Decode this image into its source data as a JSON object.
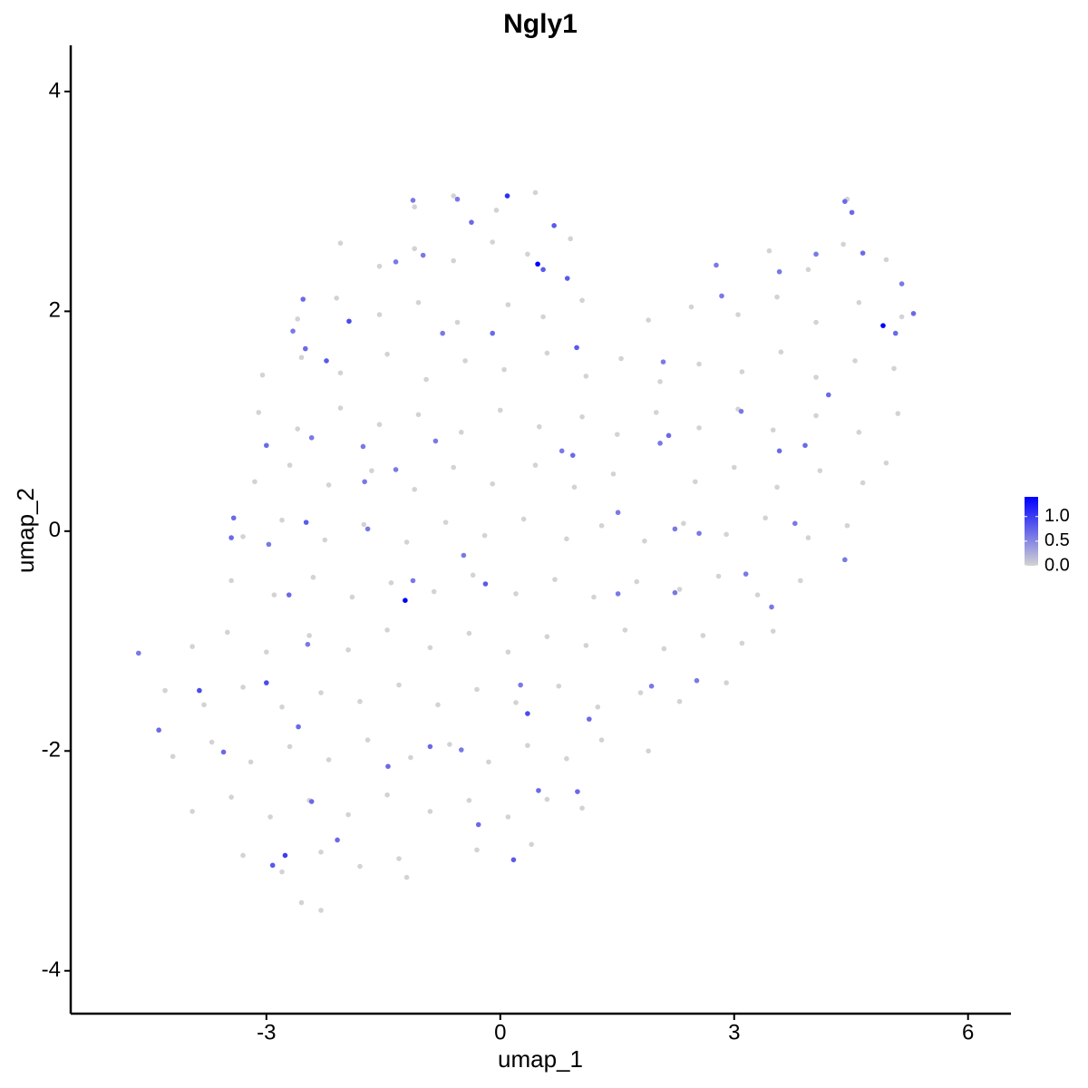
{
  "chart_data": {
    "type": "scatter",
    "title": "Ngly1",
    "x_label": "umap_1",
    "y_label": "umap_2",
    "xlim": [
      -5.51,
      6.55
    ],
    "ylim": [
      -4.39,
      4.42
    ],
    "xticks": [
      -3,
      0,
      3,
      6
    ],
    "yticks": [
      -4,
      -2,
      0,
      2,
      4
    ],
    "color_scale": {
      "low": "#d3d3d3",
      "high": "#0000ff",
      "ticks": [
        {
          "value": 0,
          "label": "0.0"
        },
        {
          "value": 0.5,
          "label": "0.5"
        },
        {
          "value": 1,
          "label": "1.0"
        }
      ]
    },
    "points": [
      [
        -1.1,
        2.95,
        0
      ],
      [
        -0.6,
        3.05,
        0
      ],
      [
        -0.05,
        2.92,
        0
      ],
      [
        0.45,
        3.08,
        0
      ],
      [
        4.45,
        3.02,
        0
      ],
      [
        -2.05,
        2.62,
        0
      ],
      [
        -1.55,
        2.41,
        0
      ],
      [
        -1.1,
        2.57,
        0
      ],
      [
        -0.6,
        2.46,
        0
      ],
      [
        -0.1,
        2.63,
        0
      ],
      [
        0.35,
        2.52,
        0
      ],
      [
        0.9,
        2.66,
        0
      ],
      [
        3.45,
        2.55,
        0
      ],
      [
        3.95,
        2.38,
        0
      ],
      [
        4.4,
        2.61,
        0
      ],
      [
        4.95,
        2.47,
        0
      ],
      [
        -2.6,
        1.93,
        0
      ],
      [
        -2.1,
        2.12,
        0
      ],
      [
        -1.55,
        1.97,
        0
      ],
      [
        -1.05,
        2.08,
        0
      ],
      [
        -0.55,
        1.9,
        0
      ],
      [
        0.1,
        2.06,
        0
      ],
      [
        0.55,
        1.95,
        0
      ],
      [
        1.05,
        2.1,
        0
      ],
      [
        1.9,
        1.92,
        0
      ],
      [
        2.45,
        2.04,
        0
      ],
      [
        3.05,
        1.97,
        0
      ],
      [
        3.55,
        2.13,
        0
      ],
      [
        4.05,
        1.9,
        0
      ],
      [
        4.6,
        2.08,
        0
      ],
      [
        5.15,
        1.95,
        0
      ],
      [
        -3.05,
        1.42,
        0
      ],
      [
        -2.55,
        1.58,
        0
      ],
      [
        -2.05,
        1.44,
        0
      ],
      [
        -1.45,
        1.61,
        0
      ],
      [
        -0.95,
        1.38,
        0
      ],
      [
        -0.45,
        1.55,
        0
      ],
      [
        0.05,
        1.47,
        0
      ],
      [
        0.6,
        1.62,
        0
      ],
      [
        1.1,
        1.41,
        0
      ],
      [
        1.55,
        1.57,
        0
      ],
      [
        2.05,
        1.36,
        0
      ],
      [
        2.55,
        1.52,
        0
      ],
      [
        3.1,
        1.45,
        0
      ],
      [
        3.6,
        1.63,
        0
      ],
      [
        4.05,
        1.4,
        0
      ],
      [
        4.55,
        1.55,
        0
      ],
      [
        5.05,
        1.48,
        0
      ],
      [
        -3.1,
        1.08,
        0
      ],
      [
        -2.6,
        0.93,
        0
      ],
      [
        -2.05,
        1.12,
        0
      ],
      [
        -1.55,
        0.97,
        0
      ],
      [
        -1.05,
        1.06,
        0
      ],
      [
        -0.5,
        0.9,
        0
      ],
      [
        0.0,
        1.1,
        0
      ],
      [
        0.5,
        0.95,
        0
      ],
      [
        1.05,
        1.04,
        0
      ],
      [
        1.5,
        0.88,
        0
      ],
      [
        2.0,
        1.08,
        0
      ],
      [
        2.55,
        0.94,
        0
      ],
      [
        3.05,
        1.11,
        0
      ],
      [
        3.5,
        0.92,
        0
      ],
      [
        4.05,
        1.05,
        0
      ],
      [
        4.6,
        0.9,
        0
      ],
      [
        5.1,
        1.07,
        0
      ],
      [
        -3.15,
        0.45,
        0
      ],
      [
        -2.7,
        0.6,
        0
      ],
      [
        -2.2,
        0.42,
        0
      ],
      [
        -1.65,
        0.55,
        0
      ],
      [
        -1.1,
        0.38,
        0
      ],
      [
        -0.6,
        0.58,
        0
      ],
      [
        -0.1,
        0.43,
        0
      ],
      [
        0.45,
        0.6,
        0
      ],
      [
        0.95,
        0.4,
        0
      ],
      [
        1.45,
        0.52,
        0
      ],
      [
        2.5,
        0.45,
        0
      ],
      [
        3.0,
        0.58,
        0
      ],
      [
        3.55,
        0.4,
        0
      ],
      [
        4.1,
        0.55,
        0
      ],
      [
        4.65,
        0.44,
        0
      ],
      [
        4.95,
        0.62,
        0
      ],
      [
        -3.3,
        -0.05,
        0
      ],
      [
        -2.8,
        0.1,
        0
      ],
      [
        -2.25,
        -0.08,
        0
      ],
      [
        -1.75,
        0.06,
        0
      ],
      [
        -1.2,
        -0.1,
        0
      ],
      [
        -0.7,
        0.08,
        0
      ],
      [
        -0.2,
        -0.04,
        0
      ],
      [
        0.3,
        0.11,
        0
      ],
      [
        0.85,
        -0.07,
        0
      ],
      [
        1.3,
        0.05,
        0
      ],
      [
        1.85,
        -0.09,
        0
      ],
      [
        2.35,
        0.07,
        0
      ],
      [
        2.9,
        -0.03,
        0
      ],
      [
        3.4,
        0.12,
        0
      ],
      [
        3.95,
        -0.06,
        0
      ],
      [
        4.45,
        0.05,
        0
      ],
      [
        -3.45,
        -0.45,
        0
      ],
      [
        -2.9,
        -0.58,
        0
      ],
      [
        -2.4,
        -0.42,
        0
      ],
      [
        -1.9,
        -0.6,
        0
      ],
      [
        -1.4,
        -0.47,
        0
      ],
      [
        -0.85,
        -0.55,
        0
      ],
      [
        -0.35,
        -0.4,
        0
      ],
      [
        0.2,
        -0.57,
        0
      ],
      [
        0.7,
        -0.44,
        0
      ],
      [
        1.2,
        -0.6,
        0
      ],
      [
        1.75,
        -0.46,
        0
      ],
      [
        2.3,
        -0.53,
        0
      ],
      [
        2.8,
        -0.41,
        0
      ],
      [
        3.3,
        -0.58,
        0
      ],
      [
        3.85,
        -0.45,
        0
      ],
      [
        -3.95,
        -1.05,
        0
      ],
      [
        -3.5,
        -0.92,
        0
      ],
      [
        -3.0,
        -1.1,
        0
      ],
      [
        -2.45,
        -0.95,
        0
      ],
      [
        -1.95,
        -1.08,
        0
      ],
      [
        -1.45,
        -0.9,
        0
      ],
      [
        -0.9,
        -1.06,
        0
      ],
      [
        -0.4,
        -0.93,
        0
      ],
      [
        0.1,
        -1.1,
        0
      ],
      [
        0.6,
        -0.96,
        0
      ],
      [
        1.1,
        -1.04,
        0
      ],
      [
        1.6,
        -0.9,
        0
      ],
      [
        2.1,
        -1.07,
        0
      ],
      [
        2.6,
        -0.95,
        0
      ],
      [
        3.1,
        -1.02,
        0
      ],
      [
        3.5,
        -0.91,
        0
      ],
      [
        -4.3,
        -1.45,
        0
      ],
      [
        -3.8,
        -1.58,
        0
      ],
      [
        -3.3,
        -1.42,
        0
      ],
      [
        -2.8,
        -1.6,
        0
      ],
      [
        -2.3,
        -1.47,
        0
      ],
      [
        -1.8,
        -1.55,
        0
      ],
      [
        -1.3,
        -1.4,
        0
      ],
      [
        -0.8,
        -1.58,
        0
      ],
      [
        -0.3,
        -1.44,
        0
      ],
      [
        0.2,
        -1.56,
        0
      ],
      [
        0.75,
        -1.41,
        0
      ],
      [
        1.25,
        -1.6,
        0
      ],
      [
        1.8,
        -1.47,
        0
      ],
      [
        2.3,
        -1.55,
        0
      ],
      [
        2.9,
        -1.38,
        0
      ],
      [
        -4.2,
        -2.05,
        0
      ],
      [
        -3.7,
        -1.92,
        0
      ],
      [
        -3.2,
        -2.1,
        0
      ],
      [
        -2.7,
        -1.96,
        0
      ],
      [
        -2.2,
        -2.08,
        0
      ],
      [
        -1.7,
        -1.9,
        0
      ],
      [
        -1.15,
        -2.06,
        0
      ],
      [
        -0.65,
        -1.94,
        0
      ],
      [
        -0.15,
        -2.1,
        0
      ],
      [
        0.35,
        -1.95,
        0
      ],
      [
        0.85,
        -2.07,
        0
      ],
      [
        1.3,
        -1.9,
        0
      ],
      [
        1.9,
        -2.0,
        0
      ],
      [
        -3.95,
        -2.55,
        0
      ],
      [
        -3.45,
        -2.42,
        0
      ],
      [
        -2.95,
        -2.6,
        0
      ],
      [
        -2.45,
        -2.45,
        0
      ],
      [
        -1.95,
        -2.58,
        0
      ],
      [
        -1.45,
        -2.4,
        0
      ],
      [
        -0.9,
        -2.55,
        0
      ],
      [
        -0.4,
        -2.45,
        0
      ],
      [
        0.1,
        -2.6,
        0
      ],
      [
        0.6,
        -2.44,
        0
      ],
      [
        1.05,
        -2.52,
        0
      ],
      [
        -3.3,
        -2.95,
        0
      ],
      [
        -2.8,
        -3.1,
        0
      ],
      [
        -2.3,
        -2.92,
        0
      ],
      [
        -1.8,
        -3.05,
        0
      ],
      [
        -1.3,
        -2.98,
        0
      ],
      [
        -0.3,
        -2.9,
        0
      ],
      [
        0.4,
        -2.85,
        0
      ],
      [
        -2.55,
        -3.38,
        0
      ],
      [
        -2.3,
        -3.45,
        0
      ],
      [
        -1.2,
        -3.15,
        0
      ],
      [
        0.09,
        3.05,
        1.1
      ],
      [
        0.48,
        2.43,
        1.4
      ],
      [
        0.55,
        2.38,
        0.8
      ],
      [
        0.69,
        2.78,
        0.8
      ],
      [
        0.86,
        2.3,
        0.8
      ],
      [
        4.91,
        1.87,
        1.4
      ],
      [
        -1.22,
        -0.63,
        1.4
      ],
      [
        4.42,
        3.0,
        0.7
      ],
      [
        4.51,
        2.9,
        0.7
      ],
      [
        4.65,
        2.53,
        0.7
      ],
      [
        5.3,
        1.98,
        0.7
      ],
      [
        5.07,
        1.8,
        0.7
      ],
      [
        -1.94,
        1.91,
        0.9
      ],
      [
        -2.23,
        1.55,
        0.8
      ],
      [
        -2.5,
        1.66,
        0.7
      ],
      [
        -2.53,
        2.11,
        0.7
      ],
      [
        -2.66,
        1.82,
        0.6
      ],
      [
        -3.0,
        0.78,
        0.7
      ],
      [
        -2.49,
        0.08,
        0.8
      ],
      [
        -3.42,
        0.12,
        0.7
      ],
      [
        -3.45,
        -0.06,
        0.7
      ],
      [
        -2.97,
        -0.12,
        0.6
      ],
      [
        -2.71,
        -0.58,
        0.7
      ],
      [
        -3.0,
        -1.38,
        0.9
      ],
      [
        -3.86,
        -1.45,
        0.9
      ],
      [
        -4.38,
        -1.81,
        0.7
      ],
      [
        -4.64,
        -1.11,
        0.6
      ],
      [
        -3.55,
        -2.01,
        0.7
      ],
      [
        -2.47,
        -1.03,
        0.6
      ],
      [
        -2.59,
        -1.78,
        0.7
      ],
      [
        -2.76,
        -2.95,
        1.0
      ],
      [
        -2.92,
        -3.04,
        0.8
      ],
      [
        -2.09,
        -2.81,
        0.7
      ],
      [
        -2.42,
        -2.46,
        0.7
      ],
      [
        -1.44,
        -2.14,
        0.7
      ],
      [
        -0.9,
        -1.96,
        0.7
      ],
      [
        -0.5,
        -1.99,
        0.6
      ],
      [
        0.35,
        -1.66,
        0.9
      ],
      [
        0.17,
        -2.99,
        0.8
      ],
      [
        -0.28,
        -2.67,
        0.7
      ],
      [
        0.49,
        -2.36,
        0.7
      ],
      [
        0.99,
        -2.37,
        0.7
      ],
      [
        1.14,
        -1.71,
        0.7
      ],
      [
        0.26,
        -1.4,
        0.6
      ],
      [
        -0.19,
        -0.48,
        0.8
      ],
      [
        -1.12,
        -0.45,
        0.6
      ],
      [
        -0.47,
        -0.22,
        0.6
      ],
      [
        1.51,
        -0.57,
        0.6
      ],
      [
        2.24,
        -0.56,
        0.6
      ],
      [
        2.55,
        -0.02,
        0.6
      ],
      [
        2.24,
        0.02,
        0.6
      ],
      [
        1.51,
        0.17,
        0.6
      ],
      [
        3.15,
        -0.39,
        0.6
      ],
      [
        3.48,
        -0.69,
        0.6
      ],
      [
        2.52,
        -1.36,
        0.6
      ],
      [
        1.94,
        -1.41,
        0.6
      ],
      [
        3.58,
        0.73,
        0.7
      ],
      [
        3.91,
        0.78,
        0.7
      ],
      [
        3.78,
        0.07,
        0.6
      ],
      [
        4.42,
        -0.26,
        0.6
      ],
      [
        4.21,
        1.24,
        0.7
      ],
      [
        3.09,
        1.09,
        0.6
      ],
      [
        2.16,
        0.87,
        0.7
      ],
      [
        2.05,
        0.8,
        0.6
      ],
      [
        2.09,
        1.54,
        0.6
      ],
      [
        0.98,
        1.67,
        0.8
      ],
      [
        0.93,
        0.69,
        0.7
      ],
      [
        0.79,
        0.73,
        0.6
      ],
      [
        -0.1,
        1.8,
        0.7
      ],
      [
        -0.37,
        2.81,
        0.7
      ],
      [
        -0.55,
        3.02,
        0.6
      ],
      [
        -1.12,
        3.01,
        0.6
      ],
      [
        -1.34,
        2.45,
        0.6
      ],
      [
        -0.99,
        2.51,
        0.6
      ],
      [
        -0.74,
        1.8,
        0.6
      ],
      [
        -0.83,
        0.82,
        0.6
      ],
      [
        -1.34,
        0.56,
        0.6
      ],
      [
        -1.76,
        0.77,
        0.6
      ],
      [
        -1.7,
        0.02,
        0.6
      ],
      [
        -1.74,
        0.45,
        0.6
      ],
      [
        -2.42,
        0.85,
        0.6
      ],
      [
        2.84,
        2.14,
        0.6
      ],
      [
        2.77,
        2.42,
        0.6
      ],
      [
        3.58,
        2.36,
        0.6
      ],
      [
        4.05,
        2.52,
        0.6
      ],
      [
        5.15,
        2.25,
        0.6
      ]
    ]
  }
}
